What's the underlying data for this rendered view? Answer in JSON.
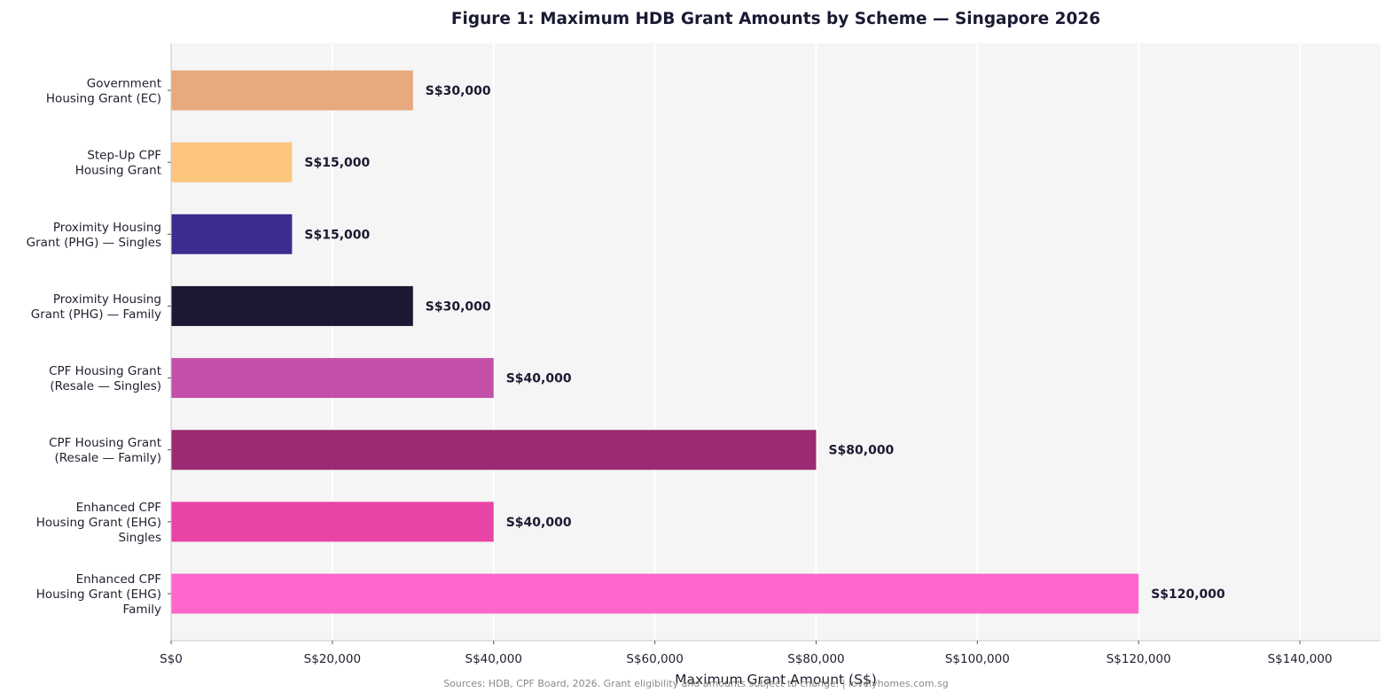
{
  "chart_data": {
    "type": "bar",
    "orientation": "horizontal",
    "title": "Figure 1: Maximum HDB Grant Amounts by Scheme — Singapore 2026",
    "xlabel": "Maximum Grant Amount (S$)",
    "ylabel": "",
    "xlim": [
      0,
      150000
    ],
    "xticks": [
      0,
      20000,
      40000,
      60000,
      80000,
      100000,
      120000,
      140000
    ],
    "xtick_labels": [
      "S$0",
      "S$20,000",
      "S$40,000",
      "S$60,000",
      "S$80,000",
      "S$100,000",
      "S$120,000",
      "S$140,000"
    ],
    "grid": "vertical",
    "background": "#f5f5f5",
    "categories": [
      [
        "Government",
        "Housing Grant (EC)"
      ],
      [
        "Step-Up CPF",
        "Housing Grant"
      ],
      [
        "Proximity Housing",
        "Grant (PHG) — Singles"
      ],
      [
        "Proximity Housing",
        "Grant (PHG) — Family"
      ],
      [
        "CPF Housing Grant",
        "(Resale — Singles)"
      ],
      [
        "CPF Housing Grant",
        "(Resale — Family)"
      ],
      [
        "Enhanced CPF",
        "Housing Grant (EHG)",
        "Singles"
      ],
      [
        "Enhanced CPF",
        "Housing Grant (EHG)",
        "Family"
      ]
    ],
    "values": [
      30000,
      15000,
      15000,
      30000,
      40000,
      80000,
      40000,
      120000
    ],
    "value_labels": [
      "S$30,000",
      "S$15,000",
      "S$15,000",
      "S$30,000",
      "S$40,000",
      "S$80,000",
      "S$40,000",
      "S$120,000"
    ],
    "colors": [
      "#e8a97e",
      "#fdc57d",
      "#3b2d8e",
      "#1c1733",
      "#c350a8",
      "#9a2a72",
      "#e843a6",
      "#ff66cc"
    ]
  },
  "footer": {
    "source": "Sources: HDB, CPF Board, 2026. Grant eligibility and amounts subject to change. | lovelyhomes.com.sg"
  }
}
